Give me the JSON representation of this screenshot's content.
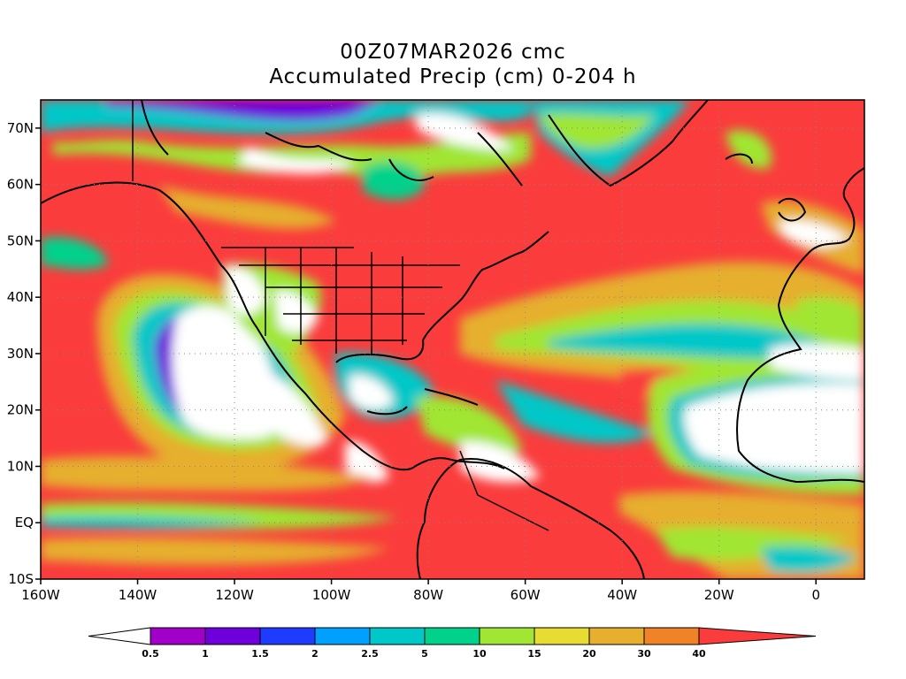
{
  "title": {
    "line1": "00Z07MAR2026 cmc",
    "line2": "Accumulated Precip (cm) 0-204 h"
  },
  "map": {
    "lon_range": [
      -160,
      10
    ],
    "lat_range": [
      -10,
      75
    ],
    "lon_ticks": [
      {
        "value": -160,
        "label": "160W"
      },
      {
        "value": -140,
        "label": "140W"
      },
      {
        "value": -120,
        "label": "120W"
      },
      {
        "value": -100,
        "label": "100W"
      },
      {
        "value": -80,
        "label": "80W"
      },
      {
        "value": -60,
        "label": "60W"
      },
      {
        "value": -40,
        "label": "40W"
      },
      {
        "value": -20,
        "label": "20W"
      },
      {
        "value": 0,
        "label": "0"
      }
    ],
    "lat_ticks": [
      {
        "value": 70,
        "label": "70N"
      },
      {
        "value": 60,
        "label": "60N"
      },
      {
        "value": 50,
        "label": "50N"
      },
      {
        "value": 40,
        "label": "40N"
      },
      {
        "value": 30,
        "label": "30N"
      },
      {
        "value": 20,
        "label": "20N"
      },
      {
        "value": 10,
        "label": "10N"
      },
      {
        "value": 0,
        "label": "EQ"
      },
      {
        "value": -10,
        "label": "10S"
      }
    ],
    "gridlines": true
  },
  "colorbar": {
    "under_color": "#ffffff",
    "levels": [
      "0.5",
      "1",
      "1.5",
      "2",
      "2.5",
      "5",
      "10",
      "15",
      "20",
      "30",
      "40"
    ],
    "colors": [
      "#a000c8",
      "#6e00dc",
      "#1e3cff",
      "#00a0ff",
      "#00c8c8",
      "#00d28c",
      "#a0e632",
      "#e6dc32",
      "#e6af2d",
      "#f08228",
      "#fa3c3c"
    ]
  }
}
